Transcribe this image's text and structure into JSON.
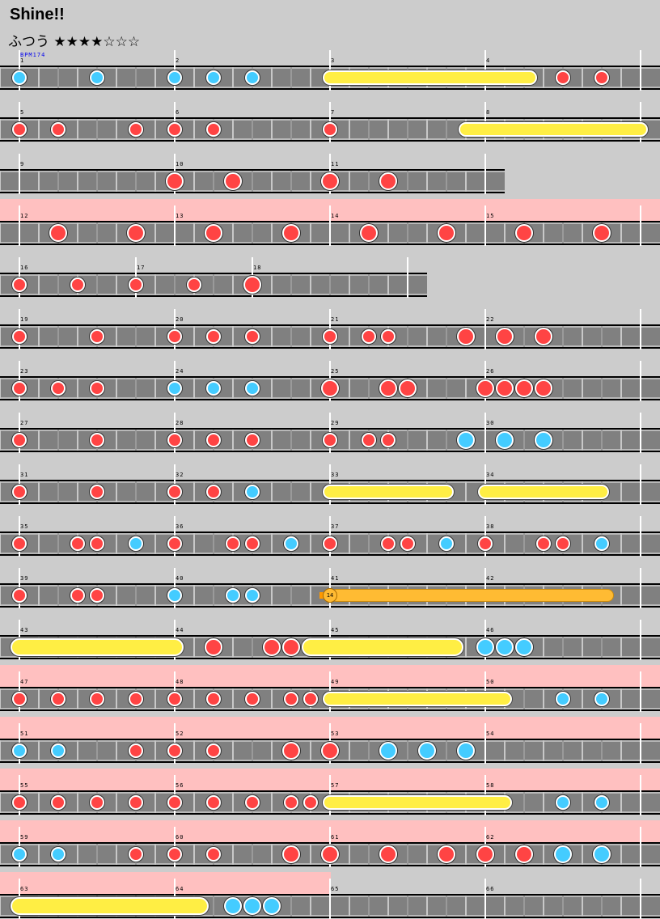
{
  "song": {
    "title": "Shine!!",
    "difficulty": "ふつう",
    "stars": "★★★★☆☆☆",
    "bpm_label": "BPM174"
  },
  "colors": {
    "don": "#ff4444",
    "ka": "#44ccff",
    "roll": "#ffee44",
    "balloon": "#ffbb33",
    "gogo": "#ffc0c0",
    "lane": "#808080"
  },
  "rows": [
    {
      "measures": [
        {
          "num": "1",
          "len": 8
        },
        {
          "num": "2",
          "len": 8
        },
        {
          "num": "3",
          "len": 8
        },
        {
          "num": "4",
          "len": 8
        }
      ],
      "gogo": false,
      "notes": [
        [
          0,
          "k"
        ],
        [
          4,
          "k"
        ],
        [
          8,
          "k"
        ],
        [
          10,
          "k"
        ],
        [
          12,
          "k"
        ],
        [
          16,
          "roll",
          26.3
        ],
        [
          28,
          "d"
        ],
        [
          30,
          "d"
        ]
      ]
    },
    {
      "measures": [
        {
          "num": "5",
          "len": 8
        },
        {
          "num": "6",
          "len": 8
        },
        {
          "num": "7",
          "len": 8
        },
        {
          "num": "8",
          "len": 8
        }
      ],
      "gogo": false,
      "notes": [
        [
          0,
          "d"
        ],
        [
          2,
          "d"
        ],
        [
          6,
          "d"
        ],
        [
          8,
          "d"
        ],
        [
          10,
          "d"
        ],
        [
          16,
          "d"
        ],
        [
          23,
          "roll",
          32
        ]
      ]
    },
    {
      "measures": [
        {
          "num": "9",
          "len": 8
        },
        {
          "num": "10",
          "len": 8
        },
        {
          "num": "11",
          "len": 8
        }
      ],
      "gogo": false,
      "notes": [
        [
          8,
          "D"
        ],
        [
          11,
          "D"
        ],
        [
          16,
          "D"
        ],
        [
          19,
          "D"
        ]
      ]
    },
    {
      "measures": [
        {
          "num": "12",
          "len": 8
        },
        {
          "num": "13",
          "len": 8
        },
        {
          "num": "14",
          "len": 8
        },
        {
          "num": "15",
          "len": 8
        }
      ],
      "gogo": true,
      "notes": [
        [
          2,
          "D"
        ],
        [
          6,
          "D"
        ],
        [
          10,
          "D"
        ],
        [
          14,
          "D"
        ],
        [
          18,
          "D"
        ],
        [
          22,
          "D"
        ],
        [
          26,
          "D"
        ],
        [
          30,
          "D"
        ]
      ]
    },
    {
      "measures": [
        {
          "num": "16",
          "len": 6
        },
        {
          "num": "17",
          "len": 6
        },
        {
          "num": "18",
          "len": 8
        }
      ],
      "gogo": false,
      "notes": [
        [
          0,
          "d"
        ],
        [
          3,
          "d"
        ],
        [
          6,
          "d"
        ],
        [
          9,
          "d"
        ],
        [
          12,
          "D"
        ]
      ]
    },
    {
      "measures": [
        {
          "num": "19",
          "len": 8
        },
        {
          "num": "20",
          "len": 8
        },
        {
          "num": "21",
          "len": 8
        },
        {
          "num": "22",
          "len": 8
        }
      ],
      "gogo": false,
      "notes": [
        [
          0,
          "d"
        ],
        [
          4,
          "d"
        ],
        [
          8,
          "d"
        ],
        [
          10,
          "d"
        ],
        [
          12,
          "d"
        ],
        [
          16,
          "d"
        ],
        [
          18,
          "d"
        ],
        [
          19,
          "d"
        ],
        [
          23,
          "D"
        ],
        [
          25,
          "D"
        ],
        [
          27,
          "D"
        ]
      ]
    },
    {
      "measures": [
        {
          "num": "23",
          "len": 8
        },
        {
          "num": "24",
          "len": 8
        },
        {
          "num": "25",
          "len": 8
        },
        {
          "num": "26",
          "len": 8
        }
      ],
      "gogo": false,
      "notes": [
        [
          0,
          "d"
        ],
        [
          2,
          "d"
        ],
        [
          4,
          "d"
        ],
        [
          8,
          "k"
        ],
        [
          10,
          "k"
        ],
        [
          12,
          "k"
        ],
        [
          16,
          "D"
        ],
        [
          19,
          "D"
        ],
        [
          20,
          "D"
        ],
        [
          24,
          "D"
        ],
        [
          25,
          "D"
        ],
        [
          26,
          "D"
        ],
        [
          27,
          "D"
        ]
      ]
    },
    {
      "measures": [
        {
          "num": "27",
          "len": 8
        },
        {
          "num": "28",
          "len": 8
        },
        {
          "num": "29",
          "len": 8
        },
        {
          "num": "30",
          "len": 8
        }
      ],
      "gogo": false,
      "notes": [
        [
          0,
          "d"
        ],
        [
          4,
          "d"
        ],
        [
          8,
          "d"
        ],
        [
          10,
          "d"
        ],
        [
          12,
          "d"
        ],
        [
          16,
          "d"
        ],
        [
          18,
          "d"
        ],
        [
          19,
          "d"
        ],
        [
          23,
          "K"
        ],
        [
          25,
          "K"
        ],
        [
          27,
          "K"
        ]
      ]
    },
    {
      "measures": [
        {
          "num": "31",
          "len": 8
        },
        {
          "num": "32",
          "len": 8
        },
        {
          "num": "33",
          "len": 8
        },
        {
          "num": "34",
          "len": 8
        }
      ],
      "gogo": false,
      "notes": [
        [
          0,
          "d"
        ],
        [
          4,
          "d"
        ],
        [
          8,
          "d"
        ],
        [
          10,
          "d"
        ],
        [
          12,
          "k"
        ],
        [
          16,
          "roll",
          22
        ],
        [
          24,
          "roll",
          30
        ]
      ]
    },
    {
      "measures": [
        {
          "num": "35",
          "len": 8
        },
        {
          "num": "36",
          "len": 8
        },
        {
          "num": "37",
          "len": 8
        },
        {
          "num": "38",
          "len": 8
        }
      ],
      "gogo": false,
      "notes": [
        [
          0,
          "d"
        ],
        [
          3,
          "d"
        ],
        [
          4,
          "d"
        ],
        [
          6,
          "k"
        ],
        [
          8,
          "d"
        ],
        [
          11,
          "d"
        ],
        [
          12,
          "d"
        ],
        [
          14,
          "k"
        ],
        [
          16,
          "d"
        ],
        [
          19,
          "d"
        ],
        [
          20,
          "d"
        ],
        [
          22,
          "k"
        ],
        [
          24,
          "d"
        ],
        [
          27,
          "d"
        ],
        [
          28,
          "d"
        ],
        [
          30,
          "k"
        ]
      ]
    },
    {
      "measures": [
        {
          "num": "39",
          "len": 8
        },
        {
          "num": "40",
          "len": 8
        },
        {
          "num": "41",
          "len": 8
        },
        {
          "num": "42",
          "len": 8
        }
      ],
      "gogo": false,
      "notes": [
        [
          0,
          "d"
        ],
        [
          3,
          "d"
        ],
        [
          4,
          "d"
        ],
        [
          8,
          "k"
        ],
        [
          11,
          "k"
        ],
        [
          12,
          "k"
        ],
        [
          16,
          "balloon",
          30.3,
          "14"
        ]
      ]
    },
    {
      "measures": [
        {
          "num": "43",
          "len": 8
        },
        {
          "num": "44",
          "len": 8
        },
        {
          "num": "45",
          "len": 8
        },
        {
          "num": "46",
          "len": 8
        }
      ],
      "gogo": false,
      "notes": [
        [
          0,
          "ROLL",
          8
        ],
        [
          10,
          "D"
        ],
        [
          13,
          "D"
        ],
        [
          14,
          "D"
        ],
        [
          15,
          "ROLL",
          22.4
        ],
        [
          24,
          "K"
        ],
        [
          25,
          "K"
        ],
        [
          26,
          "K"
        ]
      ]
    },
    {
      "measures": [
        {
          "num": "47",
          "len": 8
        },
        {
          "num": "48",
          "len": 8
        },
        {
          "num": "49",
          "len": 8
        },
        {
          "num": "50",
          "len": 8
        }
      ],
      "gogo": true,
      "notes": [
        [
          0,
          "d"
        ],
        [
          2,
          "d"
        ],
        [
          4,
          "d"
        ],
        [
          6,
          "d"
        ],
        [
          8,
          "d"
        ],
        [
          10,
          "d"
        ],
        [
          12,
          "d"
        ],
        [
          14,
          "d"
        ],
        [
          15,
          "d"
        ],
        [
          16,
          "roll",
          25
        ],
        [
          28,
          "k"
        ],
        [
          30,
          "k"
        ]
      ]
    },
    {
      "measures": [
        {
          "num": "51",
          "len": 8
        },
        {
          "num": "52",
          "len": 8
        },
        {
          "num": "53",
          "len": 8
        },
        {
          "num": "54",
          "len": 8
        }
      ],
      "gogo": true,
      "notes": [
        [
          0,
          "k"
        ],
        [
          2,
          "k"
        ],
        [
          6,
          "d"
        ],
        [
          8,
          "d"
        ],
        [
          10,
          "d"
        ],
        [
          14,
          "D"
        ],
        [
          16,
          "D"
        ],
        [
          19,
          "K"
        ],
        [
          21,
          "K"
        ],
        [
          23,
          "K"
        ]
      ]
    },
    {
      "measures": [
        {
          "num": "55",
          "len": 8
        },
        {
          "num": "56",
          "len": 8
        },
        {
          "num": "57",
          "len": 8
        },
        {
          "num": "58",
          "len": 8
        }
      ],
      "gogo": true,
      "notes": [
        [
          0,
          "d"
        ],
        [
          2,
          "d"
        ],
        [
          4,
          "d"
        ],
        [
          6,
          "d"
        ],
        [
          8,
          "d"
        ],
        [
          10,
          "d"
        ],
        [
          12,
          "d"
        ],
        [
          14,
          "d"
        ],
        [
          15,
          "d"
        ],
        [
          16,
          "roll",
          25
        ],
        [
          28,
          "k"
        ],
        [
          30,
          "k"
        ]
      ]
    },
    {
      "measures": [
        {
          "num": "59",
          "len": 8
        },
        {
          "num": "60",
          "len": 8
        },
        {
          "num": "61",
          "len": 8
        },
        {
          "num": "62",
          "len": 8
        }
      ],
      "gogo": true,
      "notes": [
        [
          0,
          "k"
        ],
        [
          2,
          "k"
        ],
        [
          6,
          "d"
        ],
        [
          8,
          "d"
        ],
        [
          10,
          "d"
        ],
        [
          14,
          "D"
        ],
        [
          16,
          "D"
        ],
        [
          19,
          "D"
        ],
        [
          22,
          "D"
        ],
        [
          24,
          "D"
        ],
        [
          26,
          "D"
        ],
        [
          28,
          "K"
        ],
        [
          30,
          "K"
        ]
      ]
    },
    {
      "measures": [
        {
          "num": "63",
          "len": 8,
          "gogo": true
        },
        {
          "num": "64",
          "len": 8,
          "gogo": true
        },
        {
          "num": "65",
          "len": 8
        },
        {
          "num": "66",
          "len": 8
        }
      ],
      "gogo": false,
      "notes": [
        [
          0,
          "ROLL",
          9.3
        ],
        [
          11,
          "K"
        ],
        [
          12,
          "K"
        ],
        [
          13,
          "K"
        ]
      ]
    }
  ]
}
